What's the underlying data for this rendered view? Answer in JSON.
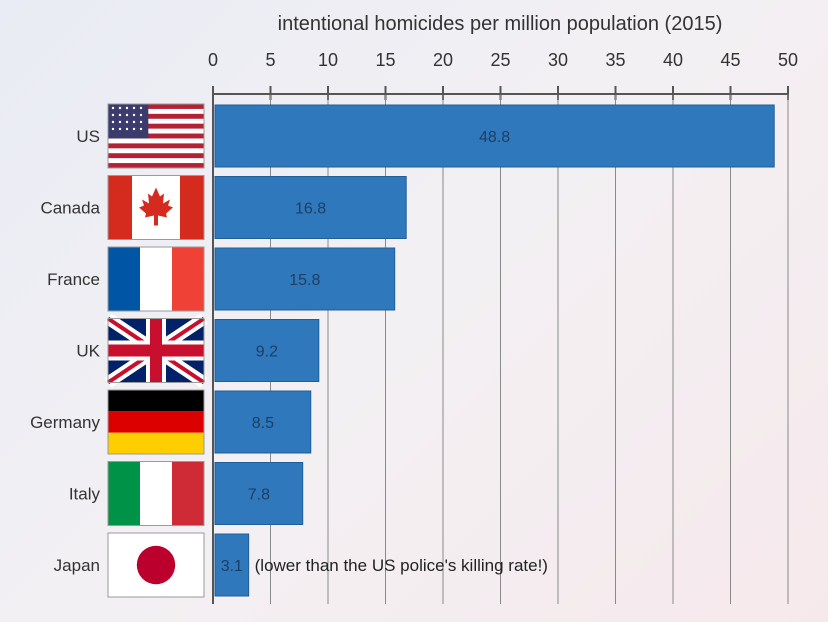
{
  "chart_data": {
    "type": "bar",
    "orientation": "horizontal",
    "title": "intentional homicides per million population (2015)",
    "categories": [
      "US",
      "Canada",
      "France",
      "UK",
      "Germany",
      "Italy",
      "Japan"
    ],
    "values": [
      48.8,
      16.8,
      15.8,
      9.2,
      8.5,
      7.8,
      3.1
    ],
    "value_labels": [
      "48.8",
      "16.8",
      "15.8",
      "9.2",
      "8.5",
      "7.8",
      "3.1"
    ],
    "xlim": [
      0,
      50
    ],
    "xticks": [
      0,
      5,
      10,
      15,
      20,
      25,
      30,
      35,
      40,
      45,
      50
    ],
    "x_axis_position": "top",
    "grid": true,
    "bar_color": "#2f78bb",
    "flags": [
      "us-flag-icon",
      "canada-flag-icon",
      "france-flag-icon",
      "uk-flag-icon",
      "germany-flag-icon",
      "italy-flag-icon",
      "japan-flag-icon"
    ],
    "annotation": "(lower than the US police's killing rate!)"
  }
}
